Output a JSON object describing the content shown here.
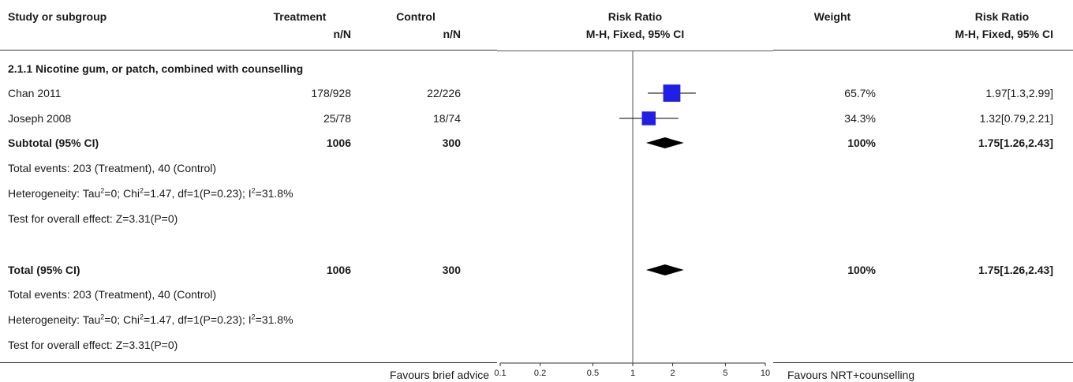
{
  "header": {
    "study_col": "Study or subgroup",
    "treatment": "Treatment",
    "treatment_sub": "n/N",
    "control": "Control",
    "control_sub": "n/N",
    "rr_plot": "Risk Ratio",
    "rr_plot_sub": "M-H, Fixed, 95% CI",
    "weight": "Weight",
    "rr_text": "Risk Ratio",
    "rr_text_sub": "M-H, Fixed, 95% CI"
  },
  "subgroup": {
    "title": "2.1.1 Nicotine gum, or patch, combined with counselling",
    "subtotal_label": "Subtotal (95% CI)",
    "subtotal_treatment": "1006",
    "subtotal_control": "300",
    "subtotal_weight": "100%",
    "subtotal_ci": "1.75[1.26,2.43]",
    "events": "Total events: 203 (Treatment), 40 (Control)",
    "heterogeneity_pre": "Heterogeneity: Tau",
    "heterogeneity_mid1": "=0; Chi",
    "heterogeneity_mid2": "=1.47, df=1(P=0.23); I",
    "heterogeneity_post": "=31.8%",
    "sup": "2",
    "test": "Test for overall effect: Z=3.31(P=0)"
  },
  "total": {
    "label": "Total (95% CI)",
    "treatment": "1006",
    "control": "300",
    "weight": "100%",
    "ci": "1.75[1.26,2.43]",
    "events": "Total events: 203 (Treatment), 40 (Control)",
    "heterogeneity_pre": "Heterogeneity: Tau",
    "heterogeneity_mid1": "=0; Chi",
    "heterogeneity_mid2": "=1.47, df=1(P=0.23); I",
    "heterogeneity_post": "=31.8%",
    "sup": "2",
    "test": "Test for overall effect: Z=3.31(P=0)"
  },
  "footer": {
    "favours_left": "Favours brief advice",
    "favours_right": "Favours NRT+counselling"
  },
  "colors": {
    "study_box": "#1f1fe6",
    "diamond": "#000000",
    "line": "#333333"
  },
  "chart_data": {
    "type": "forest",
    "scale": "log",
    "xlim": [
      0.1,
      10
    ],
    "ticks": [
      0.1,
      0.2,
      0.5,
      1,
      2,
      5,
      10
    ],
    "tick_labels": [
      "0.1",
      "0.2",
      "0.5",
      "1",
      "2",
      "5",
      "10"
    ],
    "studies": [
      {
        "name": "Chan 2011",
        "treatment": "178/928",
        "control": "22/226",
        "weight": "65.7%",
        "ci_text": "1.97[1.3,2.99]",
        "rr": 1.97,
        "lo": 1.3,
        "hi": 2.99,
        "w": 65.7
      },
      {
        "name": "Joseph 2008",
        "treatment": "25/78",
        "control": "18/74",
        "weight": "34.3%",
        "ci_text": "1.32[0.79,2.21]",
        "rr": 1.32,
        "lo": 0.79,
        "hi": 2.21,
        "w": 34.3
      }
    ],
    "subtotal": {
      "rr": 1.75,
      "lo": 1.26,
      "hi": 2.43
    },
    "overall": {
      "rr": 1.75,
      "lo": 1.26,
      "hi": 2.43
    }
  }
}
